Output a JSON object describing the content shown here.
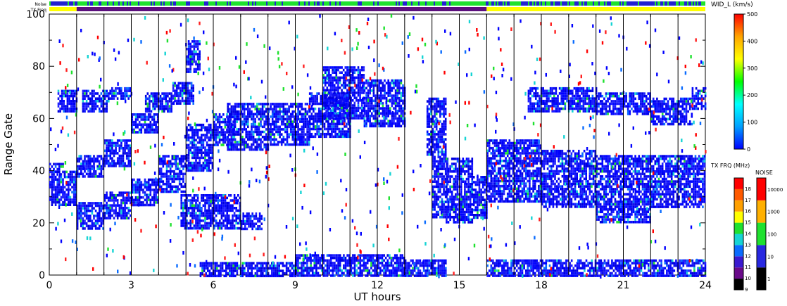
{
  "chart_data": {
    "type": "heatmap",
    "xlabel": "UT hours",
    "ylabel": "Range Gate",
    "xlim": [
      0,
      24
    ],
    "ylim": [
      0,
      100
    ],
    "x_ticks": [
      0,
      3,
      6,
      9,
      12,
      15,
      18,
      21,
      24
    ],
    "y_ticks": [
      0,
      20,
      40,
      60,
      80,
      100
    ],
    "grid": "vertical lines every hour",
    "strips": [
      {
        "label": "Noise",
        "segments": [
          {
            "x": [
              0,
              24
            ],
            "color": "#1fe12f",
            "note": "mixed green/blue"
          }
        ]
      },
      {
        "label": "TX Freq",
        "segments": [
          {
            "x": [
              0,
              1
            ],
            "color": "#ffff00"
          },
          {
            "x": [
              1,
              16
            ],
            "color": "#5b0f7d"
          },
          {
            "x": [
              16,
              24
            ],
            "color": "#ffff00"
          }
        ]
      }
    ],
    "colorbars": [
      {
        "title": "WID_L (km/s)",
        "min": 0,
        "max": 500,
        "ticks": [
          0,
          100,
          200,
          300,
          400,
          500
        ],
        "colors": [
          "#0000ff",
          "#00a0ff",
          "#00ffff",
          "#00ff00",
          "#ffff00",
          "#ffa500",
          "#ff0000"
        ]
      },
      {
        "title": "TX FRQ (MHz)",
        "ticks": [
          9,
          10,
          11,
          12,
          13,
          14,
          15,
          16,
          17,
          18
        ],
        "colors": [
          "#000000",
          "#6a0a8a",
          "#3a1ad0",
          "#0a6cff",
          "#16d4d4",
          "#1fe12f",
          "#ffff00",
          "#ffa000",
          "#ff5a00",
          "#ff0000"
        ]
      },
      {
        "title": "NOISE",
        "ticks": [
          "1",
          "10",
          "100",
          "1000",
          "10000"
        ],
        "colors": [
          "#000000",
          "#2828e0",
          "#1fe12f",
          "#ffb000",
          "#ff0000"
        ]
      }
    ],
    "series": [
      {
        "type": "band",
        "segments": [
          [
            0,
            1,
            27,
            40
          ],
          [
            0,
            0.5,
            40,
            43
          ],
          [
            0.3,
            1,
            63,
            71
          ]
        ]
      },
      {
        "type": "band",
        "segments": [
          [
            1,
            2,
            18,
            28
          ],
          [
            2,
            3,
            22,
            32
          ],
          [
            3,
            4,
            27,
            37
          ],
          [
            4,
            5,
            32,
            46
          ],
          [
            5,
            6,
            40,
            58
          ],
          [
            6,
            6.8,
            50,
            62
          ]
        ]
      },
      {
        "type": "band",
        "segments": [
          [
            1,
            2,
            38,
            46
          ],
          [
            2,
            3,
            42,
            52
          ],
          [
            3,
            4,
            55,
            62
          ],
          [
            3.5,
            4.5,
            63,
            70
          ],
          [
            4.5,
            5.3,
            66,
            74
          ],
          [
            5,
            5.5,
            78,
            90
          ]
        ]
      },
      {
        "type": "band",
        "segments": [
          [
            1.2,
            2.2,
            63,
            71
          ],
          [
            2.2,
            3,
            68,
            72
          ]
        ]
      },
      {
        "type": "band",
        "segments": [
          [
            4.8,
            7,
            18,
            31
          ],
          [
            7,
            7.8,
            18,
            24
          ]
        ]
      },
      {
        "type": "band",
        "segments": [
          [
            6.5,
            8,
            48,
            66
          ],
          [
            8,
            9.5,
            50,
            66
          ],
          [
            9.5,
            11,
            53,
            70
          ],
          [
            10,
            11.5,
            60,
            80
          ],
          [
            11.5,
            13,
            57,
            75
          ]
        ]
      },
      {
        "type": "band",
        "segments": [
          [
            13.8,
            14.5,
            45,
            68
          ],
          [
            14,
            14.6,
            22,
            45
          ],
          [
            14.5,
            15.5,
            20,
            45
          ],
          [
            15.5,
            16,
            22,
            38
          ]
        ]
      },
      {
        "type": "band",
        "segments": [
          [
            16,
            18,
            28,
            52
          ],
          [
            18,
            20,
            26,
            48
          ],
          [
            20,
            22,
            20,
            46
          ],
          [
            22,
            24,
            26,
            46
          ]
        ]
      },
      {
        "type": "band",
        "segments": [
          [
            17.5,
            20,
            63,
            72
          ],
          [
            20,
            22,
            62,
            70
          ],
          [
            22,
            23.5,
            58,
            68
          ],
          [
            23.5,
            24,
            64,
            72
          ]
        ]
      },
      {
        "type": "band",
        "segments": [
          [
            5.5,
            9,
            0,
            5
          ],
          [
            9,
            13,
            0,
            8
          ],
          [
            13,
            14.5,
            0,
            6
          ]
        ]
      },
      {
        "type": "band",
        "segments": [
          [
            16,
            24,
            0,
            6
          ]
        ]
      }
    ]
  }
}
